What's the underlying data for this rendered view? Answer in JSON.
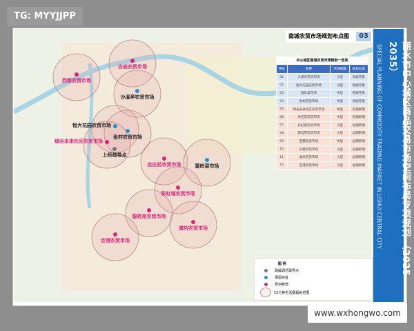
{
  "watermark": "TG: MYYJJPP",
  "site": "www.wxhongwo.com",
  "header": {
    "title": "南城农贸市场规划布点图",
    "page": "03"
  },
  "banner": {
    "title_cn": "丽水市中心城区商品交易市场空间布局专项规划 （2025-2035）",
    "title_en": "SPECIAL PLANNING OF COMMODITY TRADING MARKET IN LISHUI CENTRAL CITY"
  },
  "colors": {
    "keep": "#2a8fc8",
    "new": "#d6257a",
    "relief": "#777777",
    "banner": "#1e6fc0"
  },
  "table": {
    "caption": "中心城区南城农贸市场规划一览表",
    "headers": [
      "序号",
      "名称",
      "市场规模",
      "规划分类"
    ],
    "rows": [
      [
        "01",
        "沙溪亭农贸市场",
        "小型",
        "保留完善"
      ],
      [
        "02",
        "恒大花园农贸市场",
        "小型",
        "保留完善"
      ],
      [
        "03",
        "富岭菜市场",
        "中型",
        "保留完善"
      ],
      [
        "04",
        "张村农贸市场",
        "中型",
        "保留完善"
      ],
      [
        "05",
        "绿谷未来社区农贸市场",
        "中型",
        "近期新增"
      ],
      [
        "06",
        "余庄前农贸市场",
        "中型",
        "近期新增"
      ],
      [
        "07",
        "彩虹城农贸市场",
        "小型",
        "远期新增"
      ],
      [
        "08",
        "碧桂苑农贸市场",
        "小型",
        "远期新增"
      ],
      [
        "09",
        "西都农贸市场",
        "中型",
        "远期新增"
      ],
      [
        "10",
        "白岩农贸市场",
        "小型",
        "远期新增"
      ],
      [
        "11",
        "滩坑农贸市场",
        "小型",
        "远期新增"
      ],
      [
        "12",
        "空港农贸市场",
        "小型",
        "远期新增"
      ]
    ]
  },
  "markets": [
    {
      "name": "白岩农贸市场",
      "type": "new"
    },
    {
      "name": "西都农贸市场",
      "type": "new"
    },
    {
      "name": "沙溪亭农贸市场",
      "type": "keep"
    },
    {
      "name": "恒大花园农贸市场",
      "type": "keep"
    },
    {
      "name": "张村农贸市场",
      "type": "keep"
    },
    {
      "name": "绿谷未来社区农贸市场",
      "type": "new"
    },
    {
      "name": "上桥疏导点",
      "type": "pt"
    },
    {
      "name": "余庄前农贸市场",
      "type": "new"
    },
    {
      "name": "富岭菜市场",
      "type": "keep"
    },
    {
      "name": "彩虹城农贸市场",
      "type": "new"
    },
    {
      "name": "碧桂苑农贸市场",
      "type": "new"
    },
    {
      "name": "滩坑农贸市场",
      "type": "new"
    },
    {
      "name": "空港农贸市场",
      "type": "new"
    }
  ],
  "legend": {
    "title": "图 例",
    "items": [
      "疏解调迁疏导点",
      "保留完善",
      "规划新增",
      "15分钟生活圈辐射范围"
    ]
  }
}
